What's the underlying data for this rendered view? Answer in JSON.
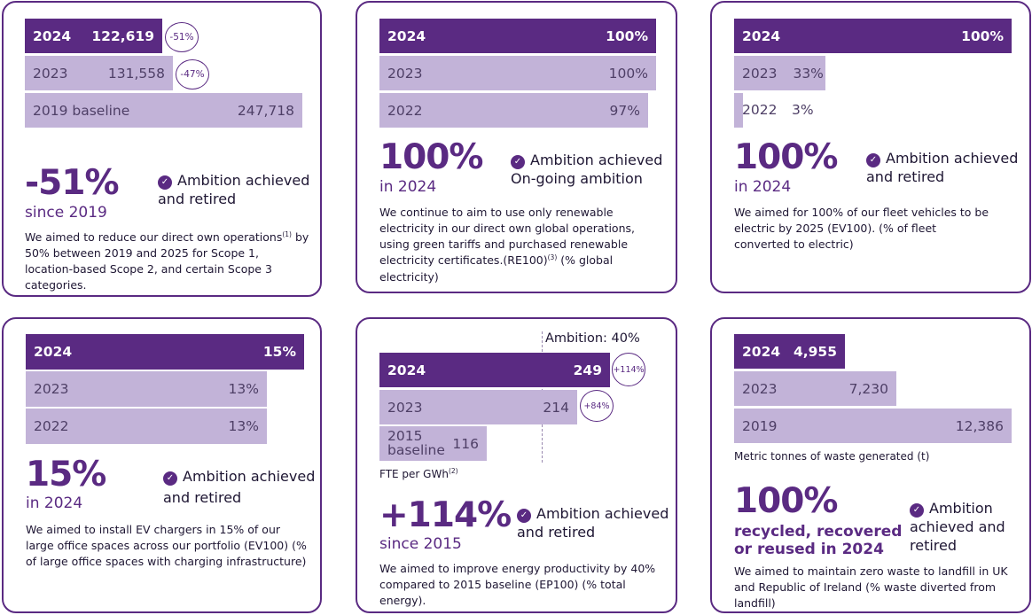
{
  "panels": [
    {
      "bars": [
        {
          "label": "2024",
          "value": "122,619",
          "change": "-51%"
        },
        {
          "label": "2023",
          "value": "131,558",
          "change": "-47%"
        },
        {
          "label": "2019 baseline",
          "value": "247,718"
        }
      ],
      "headline": "-51%",
      "since": "since 2019",
      "ambition": [
        "Ambition achieved",
        "and retired"
      ],
      "description": [
        "We aimed to reduce our direct own operations",
        "(1)",
        " by 50% between 2019 and 2025 for Scope 1, location-based Scope 2, and certain Scope 3 categories."
      ]
    },
    {
      "bars": [
        {
          "label": "2024",
          "value": "100%"
        },
        {
          "label": "2023",
          "value": "100%"
        },
        {
          "label": "2022",
          "value": "97%"
        }
      ],
      "headline": "100%",
      "since": "in 2024",
      "ambition": [
        "Ambition achieved",
        "On-going ambition"
      ],
      "description": [
        "We continue to aim to use only renewable electricity in our direct own global operations, using green tariffs and purchased renewable electricity certificates.(RE100)",
        "(3)",
        " (% global electricity)"
      ]
    },
    {
      "bars": [
        {
          "label": "2024",
          "value": "100%"
        },
        {
          "label": "2023",
          "value": "33%"
        },
        {
          "label": "2022",
          "value": "3%"
        }
      ],
      "headline": "100%",
      "since": "in 2024",
      "ambition": [
        "Ambition achieved",
        "and retired"
      ],
      "description": [
        "We aimed for 100% of our fleet vehicles to be electric by 2025 (EV100). (% of fleet converted to electric)"
      ]
    },
    {
      "bars": [
        {
          "label": "2024",
          "value": "15%"
        },
        {
          "label": "2023",
          "value": "13%"
        },
        {
          "label": "2022",
          "value": "13%"
        }
      ],
      "headline": "15%",
      "since": "in 2024",
      "ambition": [
        "Ambition achieved",
        "and retired"
      ],
      "description": [
        "We aimed to install EV chargers in 15% of our large office spaces across our portfolio (EV100) (% of large office spaces with charging infrastructure)"
      ]
    },
    {
      "ambition_marker": "Ambition: 40%",
      "bars": [
        {
          "label": "2024",
          "value": "249",
          "change": "+114%"
        },
        {
          "label": "2023",
          "value": "214",
          "change": "+84%"
        },
        {
          "label": "2015 baseline",
          "label_lines": [
            "2015",
            "baseline"
          ],
          "value": "116"
        }
      ],
      "unit": [
        "FTE per GWh",
        "(2)"
      ],
      "headline": "+114%",
      "since": "since 2015",
      "ambition": [
        "Ambition achieved",
        "and retired"
      ],
      "description": [
        "We aimed to improve energy productivity by 40% compared to 2015 baseline (EP100) (% total energy)."
      ]
    },
    {
      "bars": [
        {
          "label": "2024",
          "value": "4,955"
        },
        {
          "label": "2023",
          "value": "7,230"
        },
        {
          "label": "2019",
          "value": "12,386"
        }
      ],
      "unit": [
        "Metric tonnes of waste generated (t)"
      ],
      "headline": "100%",
      "since": "recycled, recovered or reused in 2024",
      "ambition": [
        "Ambition",
        "achieved and",
        "retired"
      ],
      "description": [
        "We aimed to maintain zero waste to landfill in UK and Republic of Ireland (% waste diverted from landfill)"
      ]
    }
  ],
  "chart_data": [
    {
      "type": "bar",
      "categories": [
        "2024",
        "2023",
        "2019 baseline"
      ],
      "values": [
        122619,
        131558,
        247718
      ],
      "changes": [
        "-51%",
        "-47%",
        null
      ]
    },
    {
      "type": "bar",
      "categories": [
        "2024",
        "2023",
        "2022"
      ],
      "values": [
        100,
        100,
        97
      ]
    },
    {
      "type": "bar",
      "categories": [
        "2024",
        "2023",
        "2022"
      ],
      "values": [
        100,
        33,
        3
      ]
    },
    {
      "type": "bar",
      "categories": [
        "2024",
        "2023",
        "2022"
      ],
      "values": [
        15,
        13,
        13
      ]
    },
    {
      "type": "bar",
      "categories": [
        "2024",
        "2023",
        "2015 baseline"
      ],
      "values": [
        249,
        214,
        116
      ],
      "changes": [
        "+114%",
        "+84%",
        null
      ],
      "xlabel": "FTE per GWh"
    },
    {
      "type": "bar",
      "categories": [
        "2024",
        "2023",
        "2019"
      ],
      "values": [
        4955,
        7230,
        12386
      ],
      "xlabel": "Metric tonnes of waste generated (t)"
    }
  ],
  "colors": {
    "primary": "#5a2a82",
    "light_bar": "#c2b3d8",
    "text": "#1e1633"
  }
}
